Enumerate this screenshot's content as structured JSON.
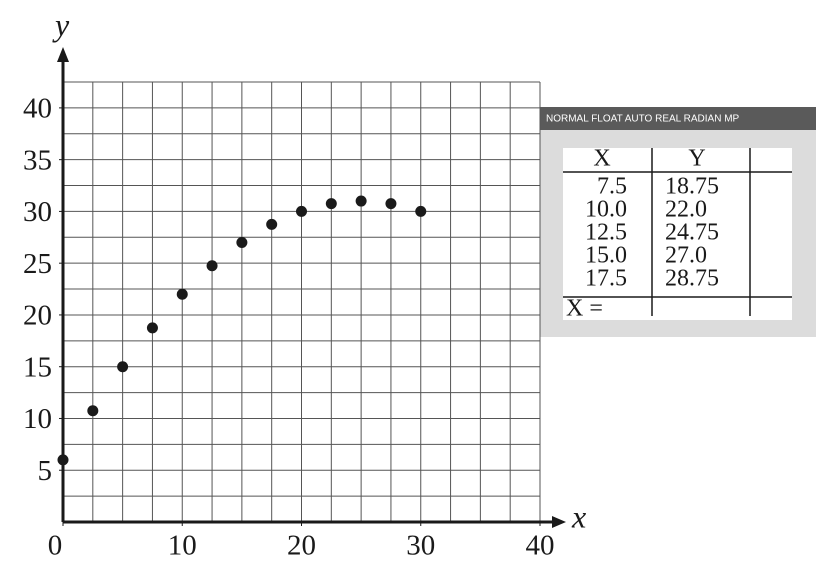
{
  "chart_data": {
    "type": "scatter",
    "x_label": "x",
    "y_label": "y",
    "x": [
      0,
      2.5,
      5,
      7.5,
      10,
      12.5,
      15,
      17.5,
      20,
      22.5,
      25,
      27.5,
      30
    ],
    "values": [
      6,
      10.75,
      15,
      18.75,
      22,
      24.75,
      27,
      28.75,
      30,
      30.75,
      31,
      30.75,
      30
    ],
    "color": "#1a1a1a",
    "xlim": [
      0,
      40
    ],
    "ylim": [
      0,
      42.5
    ],
    "xticks": [
      0,
      10,
      20,
      30,
      40
    ],
    "yticks": [
      5,
      10,
      15,
      20,
      25,
      30,
      35,
      40
    ],
    "grid": true,
    "grid_step": 2.5
  },
  "table": {
    "header": "NORMAL FLOAT AUTO REAL RADIAN MP",
    "columns": [
      "X",
      "Y"
    ],
    "rows": [
      [
        "7.5",
        "18.75"
      ],
      [
        "10.0",
        "22.0"
      ],
      [
        "12.5",
        "24.75"
      ],
      [
        "15.0",
        "27.0"
      ],
      [
        "17.5",
        "28.75"
      ]
    ],
    "footer": "X ="
  }
}
